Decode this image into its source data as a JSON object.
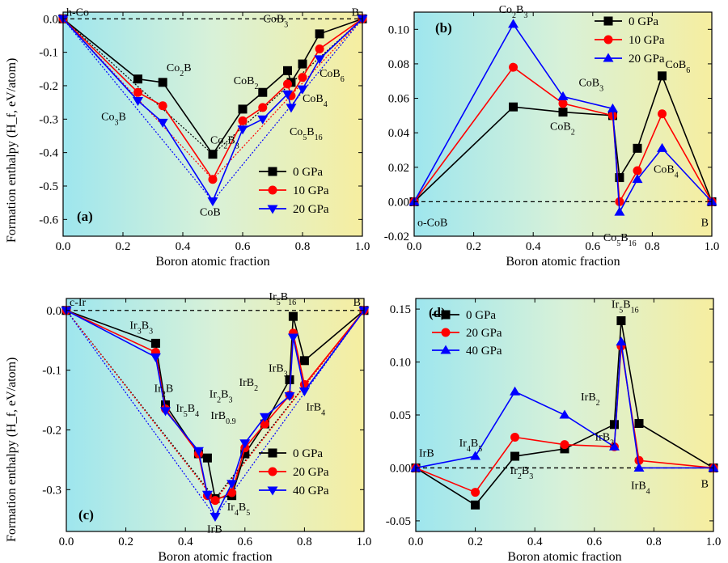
{
  "figure": {
    "ylabel": "Formation enthalpy (H_f, eV/atom)",
    "xlabel": "Boron atomic fraction"
  },
  "chart_data": [
    {
      "id": "a",
      "type": "line",
      "panel_label": "(a)",
      "xlim": [
        0,
        1
      ],
      "ylim": [
        -0.65,
        0.02
      ],
      "xticks": [
        0.0,
        0.2,
        0.4,
        0.6,
        0.8,
        1.0
      ],
      "yticks": [
        0.0,
        -0.1,
        -0.2,
        -0.3,
        -0.4,
        -0.5,
        -0.6
      ],
      "xtick_labels": [
        "0.0",
        "0.2",
        "0.4",
        "0.6",
        "0.8",
        "1.0"
      ],
      "ytick_labels": [
        "0.0",
        "-0.1",
        "-0.2",
        "-0.3",
        "-0.4",
        "-0.5",
        "-0.6"
      ],
      "xlabel": "Boron atomic fraction",
      "ylabel": "Formation enthalpy (H_f, eV/atom)",
      "legend_position": "lower-right",
      "series": [
        {
          "name": "0 GPa",
          "color": "#000000",
          "marker": "square",
          "x": [
            0.0,
            0.25,
            0.333,
            0.5,
            0.6,
            0.667,
            0.75,
            0.762,
            0.8,
            0.857,
            1.0
          ],
          "y": [
            0.0,
            -0.18,
            -0.19,
            -0.405,
            -0.27,
            -0.22,
            -0.155,
            -0.19,
            -0.135,
            -0.045,
            0.0
          ],
          "hull_x": [
            0.0,
            0.5,
            1.0
          ],
          "hull_y": [
            0.0,
            -0.405,
            0.0
          ]
        },
        {
          "name": "10 GPa",
          "color": "#ff0000",
          "marker": "circle",
          "x": [
            0.0,
            0.25,
            0.333,
            0.5,
            0.6,
            0.667,
            0.75,
            0.762,
            0.8,
            0.857,
            1.0
          ],
          "y": [
            0.0,
            -0.22,
            -0.26,
            -0.48,
            -0.305,
            -0.265,
            -0.195,
            -0.23,
            -0.175,
            -0.09,
            0.0
          ],
          "hull_x": [
            0.0,
            0.5,
            1.0
          ],
          "hull_y": [
            0.0,
            -0.48,
            0.0
          ]
        },
        {
          "name": "20 GPa",
          "color": "#0000ff",
          "marker": "triangle-down",
          "x": [
            0.0,
            0.25,
            0.333,
            0.5,
            0.6,
            0.667,
            0.75,
            0.762,
            0.8,
            0.857,
            1.0
          ],
          "y": [
            0.0,
            -0.245,
            -0.31,
            -0.545,
            -0.33,
            -0.3,
            -0.225,
            -0.265,
            -0.21,
            -0.12,
            0.0
          ],
          "hull_x": [
            0.0,
            0.5,
            1.0
          ],
          "hull_y": [
            0.0,
            -0.545,
            0.0
          ]
        }
      ],
      "annotations": [
        {
          "text": "h-Co",
          "x": 0.0,
          "y": 0.0
        },
        {
          "text": "B",
          "x": 1.0,
          "y": 0.0
        },
        {
          "text": "Co2B",
          "x": 0.333,
          "y": -0.19
        },
        {
          "text": "Co3B",
          "x": 0.25,
          "y": -0.245
        },
        {
          "text": "Co2B3",
          "x": 0.6,
          "y": -0.305
        },
        {
          "text": "CoB2",
          "x": 0.667,
          "y": -0.22
        },
        {
          "text": "CoB3",
          "x": 0.75,
          "y": -0.155
        },
        {
          "text": "CoB6",
          "x": 0.857,
          "y": -0.12
        },
        {
          "text": "CoB4",
          "x": 0.8,
          "y": -0.21
        },
        {
          "text": "Co5B16",
          "x": 0.762,
          "y": -0.265
        },
        {
          "text": "CoB",
          "x": 0.5,
          "y": -0.545
        }
      ]
    },
    {
      "id": "b",
      "type": "line",
      "panel_label": "(b)",
      "xlim": [
        0,
        1
      ],
      "ylim": [
        -0.02,
        0.11
      ],
      "xticks": [
        0.0,
        0.2,
        0.4,
        0.6,
        0.8,
        1.0
      ],
      "yticks": [
        -0.02,
        0.0,
        0.02,
        0.04,
        0.06,
        0.08,
        0.1
      ],
      "xtick_labels": [
        "0.0",
        "0.2",
        "0.4",
        "0.6",
        "0.8",
        "1.0"
      ],
      "ytick_labels": [
        "-0.02",
        "0.00",
        "0.02",
        "0.04",
        "0.06",
        "0.08",
        "0.10"
      ],
      "xlabel": "Boron atomic fraction",
      "legend_position": "top-right",
      "series": [
        {
          "name": "0 GPa",
          "color": "#000000",
          "marker": "square",
          "x": [
            0.0,
            0.333,
            0.5,
            0.667,
            0.69,
            0.75,
            0.833,
            1.0
          ],
          "y": [
            0.0,
            0.055,
            0.052,
            0.05,
            0.014,
            0.031,
            0.073,
            0.0
          ]
        },
        {
          "name": "10 GPa",
          "color": "#ff0000",
          "marker": "circle",
          "x": [
            0.0,
            0.333,
            0.5,
            0.667,
            0.69,
            0.75,
            0.833,
            1.0
          ],
          "y": [
            0.0,
            0.078,
            0.057,
            0.05,
            0.0,
            0.018,
            0.051,
            0.0
          ]
        },
        {
          "name": "20 GPa",
          "color": "#0000ff",
          "marker": "triangle-up",
          "x": [
            0.0,
            0.333,
            0.5,
            0.667,
            0.69,
            0.75,
            0.833,
            1.0
          ],
          "y": [
            0.0,
            0.103,
            0.061,
            0.054,
            -0.006,
            0.013,
            0.031,
            0.0
          ]
        }
      ],
      "annotations": [
        {
          "text": "Co2B3",
          "x": 0.333,
          "y": 0.103
        },
        {
          "text": "CoB3",
          "x": 0.667,
          "y": 0.054
        },
        {
          "text": "CoB2",
          "x": 0.5,
          "y": 0.052
        },
        {
          "text": "CoB6",
          "x": 0.833,
          "y": 0.073
        },
        {
          "text": "CoB4",
          "x": 0.75,
          "y": 0.013
        },
        {
          "text": "o-CoB",
          "x": 0.0,
          "y": 0.0
        },
        {
          "text": "Co5B16",
          "x": 0.69,
          "y": -0.006
        },
        {
          "text": "B",
          "x": 1.0,
          "y": 0.0
        }
      ]
    },
    {
      "id": "c",
      "type": "line",
      "panel_label": "(c)",
      "xlim": [
        0,
        1
      ],
      "ylim": [
        -0.37,
        0.02
      ],
      "xticks": [
        0.0,
        0.2,
        0.4,
        0.6,
        0.8,
        1.0
      ],
      "yticks": [
        0.0,
        -0.1,
        -0.2,
        -0.3
      ],
      "xtick_labels": [
        "0.0",
        "0.2",
        "0.4",
        "0.6",
        "0.8",
        "1.0"
      ],
      "ytick_labels": [
        "0.0",
        "-0.1",
        "-0.2",
        "-0.3"
      ],
      "xlabel": "Boron atomic fraction",
      "ylabel": "Formation enthalpy (H_f, eV/atom)",
      "legend_position": "lower-right",
      "series": [
        {
          "name": "0 GPa",
          "color": "#000000",
          "marker": "square",
          "x": [
            0.0,
            0.3,
            0.333,
            0.444,
            0.474,
            0.5,
            0.556,
            0.6,
            0.667,
            0.75,
            0.762,
            0.8,
            1.0
          ],
          "y": [
            0.0,
            -0.055,
            -0.158,
            -0.24,
            -0.247,
            -0.315,
            -0.31,
            -0.24,
            -0.19,
            -0.116,
            -0.01,
            -0.084,
            0.0
          ],
          "hull_x": [
            0.0,
            0.5,
            1.0
          ],
          "hull_y": [
            0.0,
            -0.315,
            0.0
          ]
        },
        {
          "name": "20 GPa",
          "color": "#ff0000",
          "marker": "circle",
          "x": [
            0.0,
            0.3,
            0.333,
            0.444,
            0.474,
            0.5,
            0.556,
            0.6,
            0.667,
            0.75,
            0.762,
            0.8,
            1.0
          ],
          "y": [
            0.0,
            -0.07,
            -0.165,
            -0.24,
            -0.31,
            -0.318,
            -0.305,
            -0.23,
            -0.19,
            -0.142,
            -0.038,
            -0.124,
            0.0
          ],
          "hull_x": [
            0.0,
            0.5,
            1.0
          ],
          "hull_y": [
            0.0,
            -0.318,
            0.0
          ]
        },
        {
          "name": "40 GPa",
          "color": "#0000ff",
          "marker": "triangle-down",
          "x": [
            0.0,
            0.3,
            0.333,
            0.444,
            0.474,
            0.5,
            0.556,
            0.6,
            0.667,
            0.75,
            0.762,
            0.8,
            1.0
          ],
          "y": [
            0.0,
            -0.078,
            -0.168,
            -0.235,
            -0.308,
            -0.345,
            -0.29,
            -0.222,
            -0.178,
            -0.143,
            -0.045,
            -0.135,
            0.0
          ],
          "hull_x": [
            0.0,
            0.5,
            1.0
          ],
          "hull_y": [
            0.0,
            -0.345,
            0.0
          ]
        }
      ],
      "annotations": [
        {
          "text": "c-Ir",
          "x": 0.0,
          "y": 0.0
        },
        {
          "text": "B",
          "x": 1.0,
          "y": 0.0
        },
        {
          "text": "Ir5B16",
          "x": 0.762,
          "y": -0.01
        },
        {
          "text": "Ir3B3",
          "x": 0.3,
          "y": -0.055
        },
        {
          "text": "Ir2B",
          "x": 0.333,
          "y": -0.158
        },
        {
          "text": "Ir5B4",
          "x": 0.444,
          "y": -0.24
        },
        {
          "text": "IrB0.9",
          "x": 0.474,
          "y": -0.247
        },
        {
          "text": "IrB3",
          "x": 0.75,
          "y": -0.116
        },
        {
          "text": "IrB2",
          "x": 0.667,
          "y": -0.178
        },
        {
          "text": "Ir2B3",
          "x": 0.6,
          "y": -0.222
        },
        {
          "text": "IrB4",
          "x": 0.8,
          "y": -0.135
        },
        {
          "text": "Ir4B5",
          "x": 0.556,
          "y": -0.305
        },
        {
          "text": "IrB",
          "x": 0.5,
          "y": -0.345
        }
      ]
    },
    {
      "id": "d",
      "type": "line",
      "panel_label": "(d)",
      "xlim": [
        0,
        1
      ],
      "ylim": [
        -0.06,
        0.16
      ],
      "xticks": [
        0.0,
        0.2,
        0.4,
        0.6,
        0.8,
        1.0
      ],
      "yticks": [
        -0.05,
        0.0,
        0.05,
        0.1,
        0.15
      ],
      "xtick_labels": [
        "0.0",
        "0.2",
        "0.4",
        "0.6",
        "0.8",
        "1.0"
      ],
      "ytick_labels": [
        "-0.05",
        "0.00",
        "0.05",
        "0.10",
        "0.15"
      ],
      "xlabel": "Boron atomic fraction",
      "legend_position": "top-left",
      "series": [
        {
          "name": "0 GPa",
          "color": "#000000",
          "marker": "square",
          "x": [
            0.0,
            0.2,
            0.333,
            0.5,
            0.667,
            0.69,
            0.75,
            1.0
          ],
          "y": [
            0.0,
            -0.035,
            0.011,
            0.018,
            0.041,
            0.139,
            0.042,
            0.0
          ]
        },
        {
          "name": "20 GPa",
          "color": "#ff0000",
          "marker": "circle",
          "x": [
            0.0,
            0.2,
            0.333,
            0.5,
            0.667,
            0.69,
            0.75,
            1.0
          ],
          "y": [
            0.0,
            -0.023,
            0.029,
            0.022,
            0.02,
            0.115,
            0.007,
            0.0
          ]
        },
        {
          "name": "40 GPa",
          "color": "#0000ff",
          "marker": "triangle-up",
          "x": [
            0.0,
            0.2,
            0.333,
            0.5,
            0.667,
            0.69,
            0.75,
            1.0
          ],
          "y": [
            0.0,
            0.011,
            0.072,
            0.05,
            0.02,
            0.119,
            0.0,
            0.0
          ]
        }
      ],
      "annotations": [
        {
          "text": "Ir5B16",
          "x": 0.69,
          "y": 0.139
        },
        {
          "text": "IrB2",
          "x": 0.5,
          "y": 0.05
        },
        {
          "text": "Ir4B5",
          "x": 0.2,
          "y": 0.011
        },
        {
          "text": "IrB",
          "x": 0.0,
          "y": 0.0
        },
        {
          "text": "IrB3",
          "x": 0.667,
          "y": 0.02
        },
        {
          "text": "Ir2B3",
          "x": 0.333,
          "y": 0.011
        },
        {
          "text": "IrB4",
          "x": 0.75,
          "y": 0.0
        },
        {
          "text": "B",
          "x": 1.0,
          "y": 0.0
        }
      ]
    }
  ]
}
